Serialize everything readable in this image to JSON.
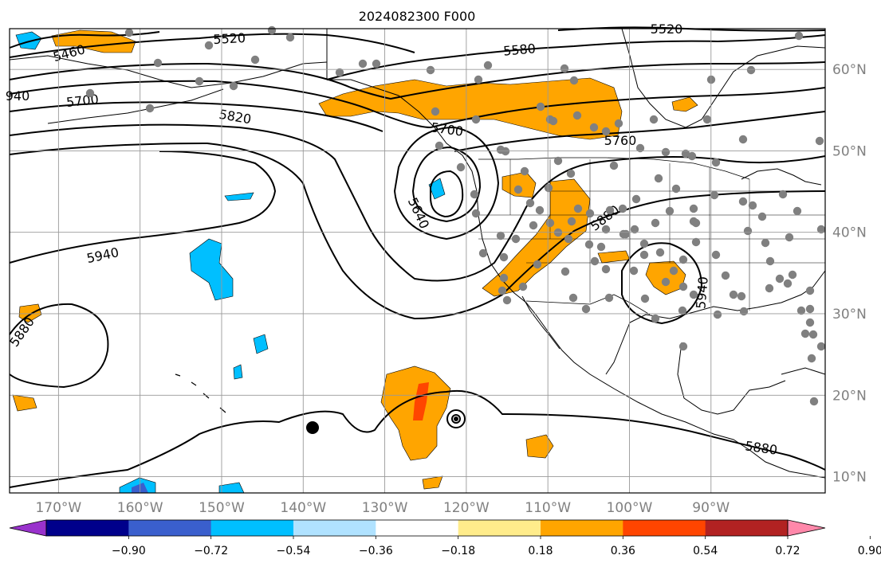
{
  "title": "2024082300 F000",
  "longitude_labels": [
    "170°W",
    "160°W",
    "150°W",
    "140°W",
    "130°W",
    "120°W",
    "110°W",
    "100°W",
    "90°W"
  ],
  "latitude_labels": [
    "60°N",
    "50°N",
    "40°N",
    "30°N",
    "20°N",
    "10°N"
  ],
  "colorbar": {
    "tick_labels": [
      "−0.90",
      "−0.72",
      "−0.54",
      "−0.36",
      "−0.18",
      "0.18",
      "0.36",
      "0.54",
      "0.72",
      "0.90"
    ],
    "colors": [
      "#9932cc",
      "#00008b",
      "#3a5fcd",
      "#00bfff",
      "#b0e2ff",
      "#ffffff",
      "#ffec8b",
      "#ffa500",
      "#ff4500",
      "#b22222",
      "#ff88aa"
    ]
  },
  "contour_labels": [
    "5460",
    "5520",
    "5580",
    "5520",
    "940",
    "5700",
    "5820",
    "5700",
    "5760",
    "5640",
    "5880",
    "5940",
    "5880",
    "5940",
    "5880"
  ],
  "map": {
    "lon_range": [
      -176,
      -76
    ],
    "lat_range": [
      8,
      65
    ],
    "fill_colors": {
      "orange": "#ffa500",
      "red": "#ff4500",
      "blue": "#00bfff",
      "dark_blue": "#3a5fcd"
    },
    "station_marker_color": "#808080"
  }
}
